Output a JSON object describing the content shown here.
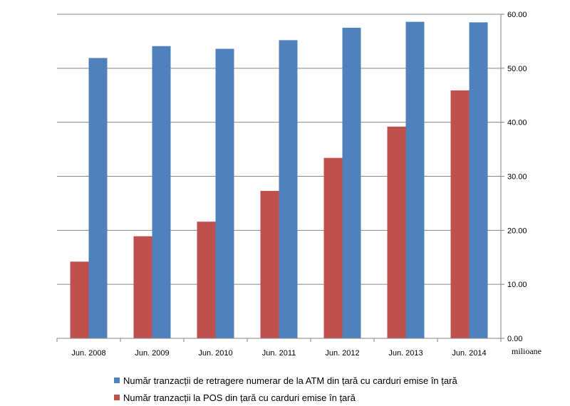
{
  "chart_data": {
    "type": "bar",
    "categories": [
      "Jun. 2008",
      "Jun. 2009",
      "Jun. 2010",
      "Jun. 2011",
      "Jun. 2012",
      "Jun. 2013",
      "Jun. 2014"
    ],
    "series": [
      {
        "name": "Număr tranzacții  de retragere  numerar  de la ATM din țară  cu carduri emise în țară",
        "color": "#4F81BD",
        "values": [
          51.9,
          54.1,
          53.6,
          55.2,
          57.5,
          58.6,
          58.5
        ]
      },
      {
        "name": "Număr tranzacții  la POS din țară  cu carduri emise în țară",
        "color": "#C0504D",
        "values": [
          14.2,
          18.9,
          21.6,
          27.3,
          33.4,
          39.2,
          45.9
        ]
      }
    ],
    "series_draw_order": [
      1,
      0
    ],
    "y_ticks": [
      "0.00",
      "10.00",
      "20.00",
      "30.00",
      "40.00",
      "50.00",
      "60.00"
    ],
    "ylim": [
      0,
      60
    ],
    "y_axis_position": "right",
    "y_unit": "milioane",
    "grid": true,
    "legend_position": "bottom"
  }
}
